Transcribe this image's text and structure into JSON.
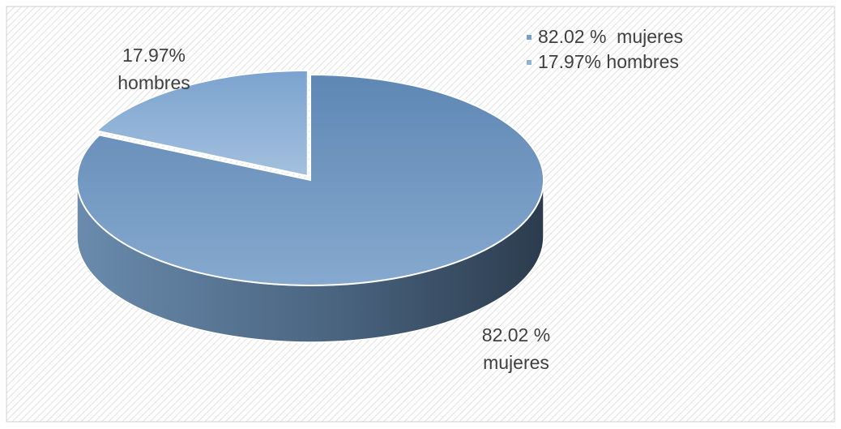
{
  "chart_data": {
    "type": "pie3d",
    "categories": [
      "82.02 %  mujeres",
      "17.97% hombres"
    ],
    "values": [
      82.02,
      17.97
    ],
    "value_labels": [
      "82.02 %\nmujeres",
      "17.97%\nhombres"
    ],
    "colors": [
      "#7a9fc8",
      "#8fb2d8"
    ],
    "legend": "top-right"
  }
}
